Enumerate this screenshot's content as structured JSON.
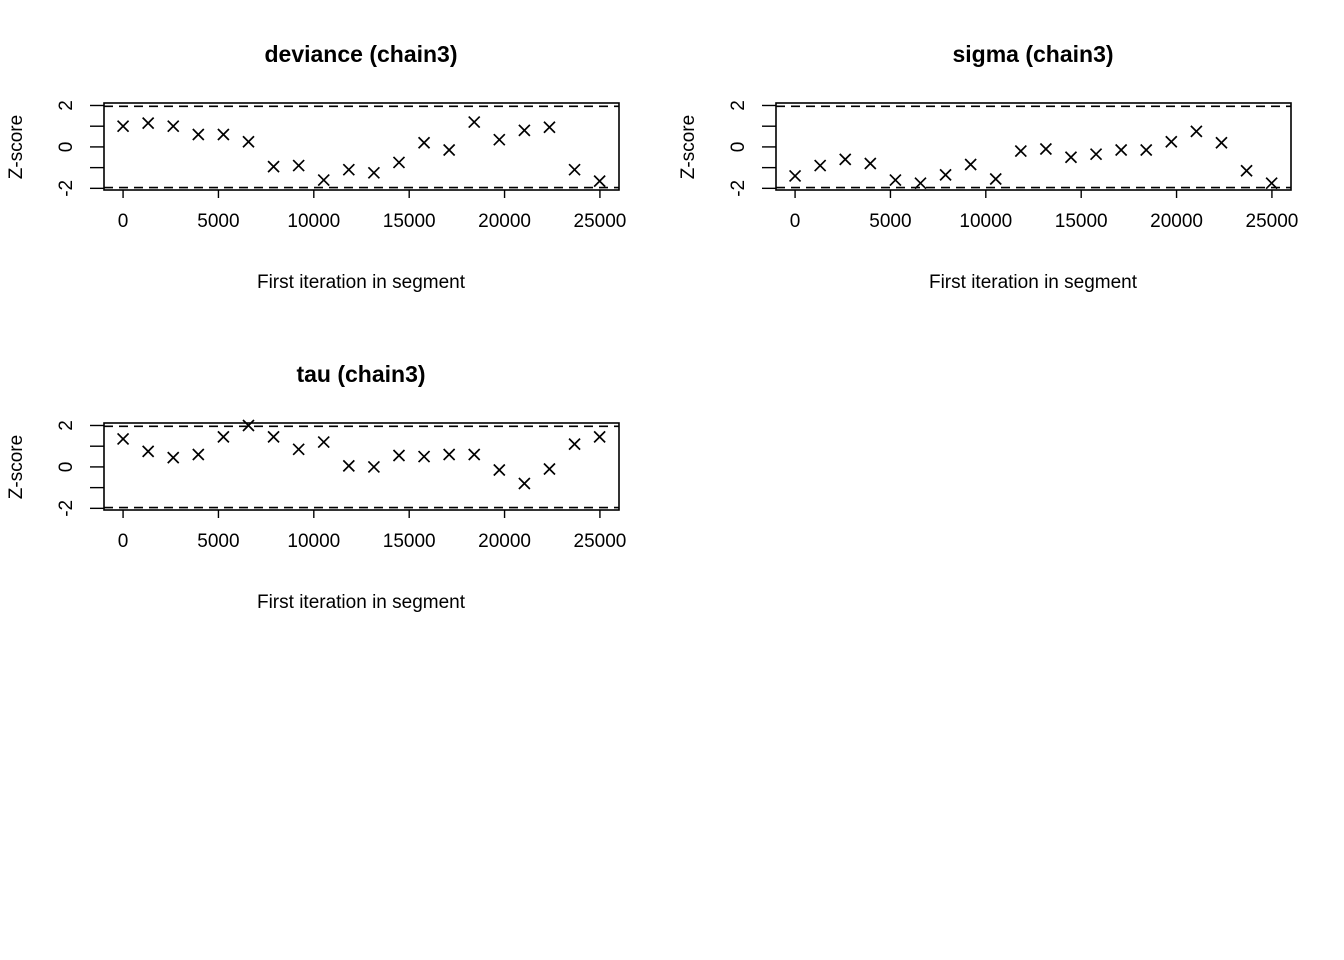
{
  "chart_data": [
    {
      "type": "scatter",
      "title": "deviance (chain3)",
      "xlabel": "First iteration in segment",
      "ylabel": "Z-score",
      "xlim": [
        -1000,
        26000
      ],
      "ylim": [
        -2,
        2
      ],
      "x_ticks": [
        0,
        5000,
        10000,
        15000,
        20000,
        25000
      ],
      "y_ticks": [
        -2,
        0,
        2
      ],
      "reference_lines": [
        -1.96,
        1.96
      ],
      "marker": "x",
      "grid": false,
      "x": [
        0,
        1315,
        2630,
        3945,
        5260,
        6575,
        7890,
        9205,
        10520,
        11835,
        13150,
        14465,
        15780,
        17095,
        18410,
        19725,
        21040,
        22355,
        23670,
        24985
      ],
      "y": [
        1.0,
        1.15,
        1.0,
        0.6,
        0.6,
        0.25,
        -0.95,
        -0.9,
        -1.6,
        -1.1,
        -1.25,
        -0.75,
        0.2,
        -0.15,
        1.2,
        0.35,
        0.8,
        0.95,
        -1.1,
        -1.65
      ]
    },
    {
      "type": "scatter",
      "title": "sigma (chain3)",
      "xlabel": "First iteration in segment",
      "ylabel": "Z-score",
      "xlim": [
        -1000,
        26000
      ],
      "ylim": [
        -2,
        2
      ],
      "x_ticks": [
        0,
        5000,
        10000,
        15000,
        20000,
        25000
      ],
      "y_ticks": [
        -2,
        0,
        2
      ],
      "reference_lines": [
        -1.96,
        1.96
      ],
      "marker": "x",
      "grid": false,
      "x": [
        0,
        1315,
        2630,
        3945,
        5260,
        6575,
        7890,
        9205,
        10520,
        11835,
        13150,
        14465,
        15780,
        17095,
        18410,
        19725,
        21040,
        22355,
        23670,
        24985
      ],
      "y": [
        -1.4,
        -0.9,
        -0.6,
        -0.8,
        -1.6,
        -1.75,
        -1.35,
        -0.85,
        -1.55,
        -0.2,
        -0.1,
        -0.5,
        -0.35,
        -0.15,
        -0.15,
        0.25,
        0.75,
        0.2,
        -1.15,
        -1.75
      ]
    },
    {
      "type": "scatter",
      "title": "tau (chain3)",
      "xlabel": "First iteration in segment",
      "ylabel": "Z-score",
      "xlim": [
        -1000,
        26000
      ],
      "ylim": [
        -2,
        2
      ],
      "x_ticks": [
        0,
        5000,
        10000,
        15000,
        20000,
        25000
      ],
      "y_ticks": [
        -2,
        0,
        2
      ],
      "reference_lines": [
        -1.96,
        1.96
      ],
      "marker": "x",
      "grid": false,
      "x": [
        0,
        1315,
        2630,
        3945,
        5260,
        6575,
        7890,
        9205,
        10520,
        11835,
        13150,
        14465,
        15780,
        17095,
        18410,
        19725,
        21040,
        22355,
        23670,
        24985
      ],
      "y": [
        1.35,
        0.75,
        0.45,
        0.6,
        1.45,
        2.0,
        1.45,
        0.85,
        1.2,
        0.05,
        0.0,
        0.55,
        0.5,
        0.6,
        0.6,
        -0.15,
        -0.8,
        -0.1,
        1.1,
        1.45
      ]
    }
  ]
}
